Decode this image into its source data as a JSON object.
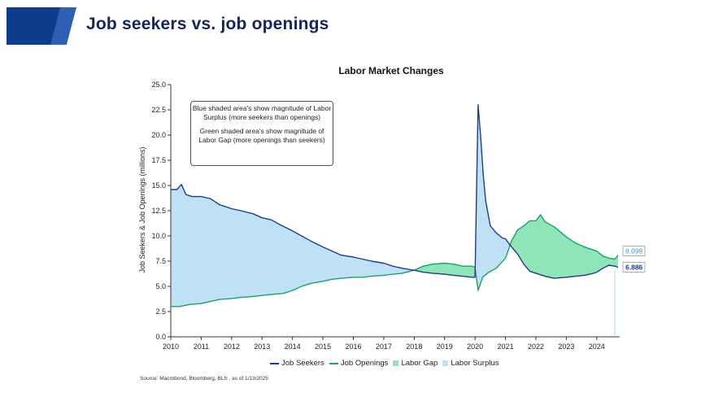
{
  "page": {
    "title": "Job seekers vs. job openings",
    "source": "Source: Macrobond, Bloomberg, BLS , as of 1/13/2025"
  },
  "annotation": {
    "para1": "Blue shaded area's show magnitude of Labor Surplus (more seekers than openings)",
    "para2": "Green shaded area's show magnitude of Labor Gap (more openings than seekers)"
  },
  "colors": {
    "seekers": "#1f3c88",
    "openings": "#1aa06b",
    "gap": "#8ee6b8",
    "surplus": "#bfe0f5"
  },
  "chart_data": {
    "type": "line",
    "title": "Labor Market Changes",
    "ylabel": "Job Seekers & Job Openings (millions)",
    "ylim": [
      0,
      25
    ],
    "xlim": [
      2010,
      2024.7
    ],
    "yticks": [
      "0.0",
      "2.5",
      "5.0",
      "7.5",
      "10.0",
      "12.5",
      "15.0",
      "17.5",
      "20.0",
      "22.5",
      "25.0"
    ],
    "xticks": [
      "2010",
      "2011",
      "2012",
      "2013",
      "2014",
      "2015",
      "2016",
      "2017",
      "2018",
      "2019",
      "2020",
      "2021",
      "2022",
      "2023",
      "2024"
    ],
    "end_labels": {
      "openings": "8.098",
      "seekers": "6.886"
    },
    "legend": [
      "Job Seekers",
      "Job Openings",
      "Labor Gap",
      "Labor Surplus"
    ],
    "series": [
      {
        "name": "Job Seekers",
        "x": [
          2010.0,
          2010.2,
          2010.35,
          2010.5,
          2010.7,
          2011.0,
          2011.3,
          2011.6,
          2012.0,
          2012.3,
          2012.7,
          2013.0,
          2013.3,
          2013.6,
          2014.0,
          2014.3,
          2014.6,
          2015.0,
          2015.3,
          2015.6,
          2016.0,
          2016.3,
          2016.6,
          2017.0,
          2017.3,
          2017.6,
          2018.0,
          2018.3,
          2018.6,
          2019.0,
          2019.3,
          2019.6,
          2019.9,
          2020.0,
          2020.1,
          2020.18,
          2020.27,
          2020.35,
          2020.5,
          2020.7,
          2020.9,
          2021.0,
          2021.2,
          2021.4,
          2021.6,
          2021.8,
          2022.0,
          2022.3,
          2022.6,
          2023.0,
          2023.3,
          2023.6,
          2023.9,
          2024.0,
          2024.2,
          2024.4,
          2024.6,
          2024.7
        ],
        "y": [
          14.6,
          14.6,
          15.1,
          14.1,
          13.9,
          13.9,
          13.7,
          13.1,
          12.7,
          12.5,
          12.2,
          11.8,
          11.6,
          11.1,
          10.5,
          10.0,
          9.5,
          8.9,
          8.5,
          8.1,
          7.9,
          7.7,
          7.5,
          7.3,
          7.0,
          6.8,
          6.6,
          6.4,
          6.3,
          6.2,
          6.1,
          6.0,
          5.9,
          5.9,
          23.0,
          20.0,
          16.0,
          13.5,
          11.0,
          10.3,
          9.8,
          9.7,
          8.9,
          8.2,
          7.2,
          6.5,
          6.3,
          6.0,
          5.8,
          5.9,
          6.0,
          6.1,
          6.3,
          6.4,
          6.8,
          7.1,
          7.0,
          6.886
        ]
      },
      {
        "name": "Job Openings",
        "x": [
          2010.0,
          2010.3,
          2010.6,
          2011.0,
          2011.3,
          2011.6,
          2012.0,
          2012.3,
          2012.7,
          2013.0,
          2013.3,
          2013.7,
          2014.0,
          2014.3,
          2014.6,
          2015.0,
          2015.3,
          2015.6,
          2016.0,
          2016.3,
          2016.6,
          2017.0,
          2017.3,
          2017.6,
          2018.0,
          2018.3,
          2018.6,
          2019.0,
          2019.3,
          2019.6,
          2019.9,
          2020.0,
          2020.1,
          2020.25,
          2020.45,
          2020.7,
          2021.0,
          2021.2,
          2021.4,
          2021.6,
          2021.8,
          2022.0,
          2022.15,
          2022.3,
          2022.6,
          2023.0,
          2023.3,
          2023.6,
          2023.9,
          2024.0,
          2024.2,
          2024.4,
          2024.6,
          2024.7
        ],
        "y": [
          3.0,
          3.0,
          3.2,
          3.3,
          3.5,
          3.7,
          3.8,
          3.9,
          4.0,
          4.1,
          4.2,
          4.3,
          4.6,
          5.0,
          5.3,
          5.5,
          5.7,
          5.8,
          5.9,
          5.9,
          6.0,
          6.1,
          6.2,
          6.3,
          6.6,
          7.0,
          7.2,
          7.3,
          7.2,
          7.0,
          7.0,
          6.9,
          4.6,
          5.9,
          6.4,
          6.8,
          7.8,
          9.5,
          10.6,
          11.0,
          11.5,
          11.5,
          12.1,
          11.4,
          10.9,
          9.9,
          9.3,
          8.9,
          8.6,
          8.5,
          8.0,
          7.8,
          7.7,
          8.098
        ]
      }
    ]
  }
}
